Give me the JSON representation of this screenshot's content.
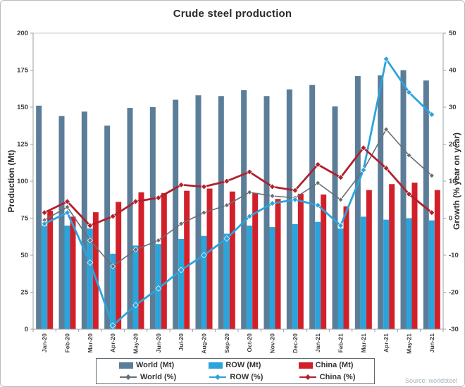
{
  "title": "Crude steel production",
  "source": "Source: worldsteel",
  "left_axis": {
    "label": "Production (Mt)",
    "ticks": [
      0,
      25,
      50,
      75,
      100,
      125,
      150,
      175,
      200
    ]
  },
  "right_axis": {
    "label": "Growth (% year on year)",
    "ticks": [
      -30,
      -20,
      -10,
      0,
      10,
      20,
      30,
      40,
      50
    ]
  },
  "colors": {
    "world_bar": "#5b7d98",
    "row_bar": "#2aa4db",
    "china_bar": "#d2202a",
    "world_line": "#696e74",
    "row_line": "#2aa4db",
    "china_line": "#b1202c",
    "axis": "#9aa0a5",
    "tick_text": "#3f3f3f"
  },
  "legend": [
    {
      "label": "World (Mt)",
      "type": "bar",
      "color_key": "world_bar"
    },
    {
      "label": "ROW (Mt)",
      "type": "bar",
      "color_key": "row_bar"
    },
    {
      "label": "China (Mt)",
      "type": "bar",
      "color_key": "china_bar"
    },
    {
      "label": "World (%)",
      "type": "line",
      "color_key": "world_line"
    },
    {
      "label": "ROW (%)",
      "type": "line",
      "color_key": "row_line"
    },
    {
      "label": "China (%)",
      "type": "line",
      "color_key": "china_line"
    }
  ],
  "chart_data": {
    "type": "bar+line combo",
    "title": "Crude steel production",
    "categories": [
      "Jan-20",
      "Feb-20",
      "Mar-20",
      "Apr-20",
      "May-20",
      "Jun-20",
      "Jul-20",
      "Aug-20",
      "Sep-20",
      "Oct-20",
      "Nov-20",
      "Dec-20",
      "Jan-21",
      "Feb-21",
      "Mar-21",
      "Apr-21",
      "May-21",
      "Jun-21"
    ],
    "left_ylabel": "Production (Mt)",
    "right_ylabel": "Growth (% year on year)",
    "left_ylim": [
      0,
      200
    ],
    "right_ylim": [
      -30,
      50
    ],
    "grid": false,
    "legend_position": "bottom",
    "bar_series": [
      {
        "name": "World (Mt)",
        "axis": "left",
        "color_key": "world_bar",
        "values": [
          151,
          144,
          147,
          137.5,
          149.5,
          150,
          155,
          158,
          157.5,
          161.5,
          157.5,
          162,
          165,
          150.5,
          171,
          171.5,
          175,
          168
        ]
      },
      {
        "name": "ROW (Mt)",
        "axis": "left",
        "color_key": "row_bar",
        "values": [
          70,
          70,
          68,
          51,
          56.5,
          57.5,
          61,
          63,
          64.5,
          70,
          69,
          71,
          72.5,
          68,
          76,
          74,
          75,
          73.5
        ]
      },
      {
        "name": "China (Mt)",
        "axis": "left",
        "color_key": "china_bar",
        "values": [
          80,
          76,
          79,
          86,
          92.5,
          92,
          93.5,
          95,
          93,
          92,
          88,
          91.5,
          91,
          83,
          94,
          98,
          99,
          94
        ]
      }
    ],
    "line_series": [
      {
        "name": "World (%)",
        "axis": "right",
        "color_key": "world_line",
        "width": 1.6,
        "marker": 3.5,
        "values": [
          -0.5,
          3,
          -6,
          -13,
          -8.5,
          -6,
          -1.5,
          1.5,
          3.5,
          7,
          6,
          5.5,
          9.5,
          5,
          13,
          24,
          17,
          11.5
        ]
      },
      {
        "name": "ROW (%)",
        "axis": "right",
        "color_key": "row_line",
        "width": 2.8,
        "marker": 4,
        "values": [
          -1.5,
          1.5,
          -12,
          -29,
          -23.5,
          -19,
          -14,
          -10,
          -5.5,
          0.5,
          4,
          5,
          3.5,
          -2,
          13,
          43,
          34,
          28
        ]
      },
      {
        "name": "China (%)",
        "axis": "right",
        "color_key": "china_line",
        "width": 2.8,
        "marker": 4,
        "values": [
          1.5,
          4.5,
          -2,
          0.5,
          4.5,
          5.5,
          9,
          8.5,
          10,
          12.5,
          8.5,
          7.5,
          14.5,
          11,
          19,
          13.5,
          6.5,
          1.5
        ]
      }
    ]
  }
}
